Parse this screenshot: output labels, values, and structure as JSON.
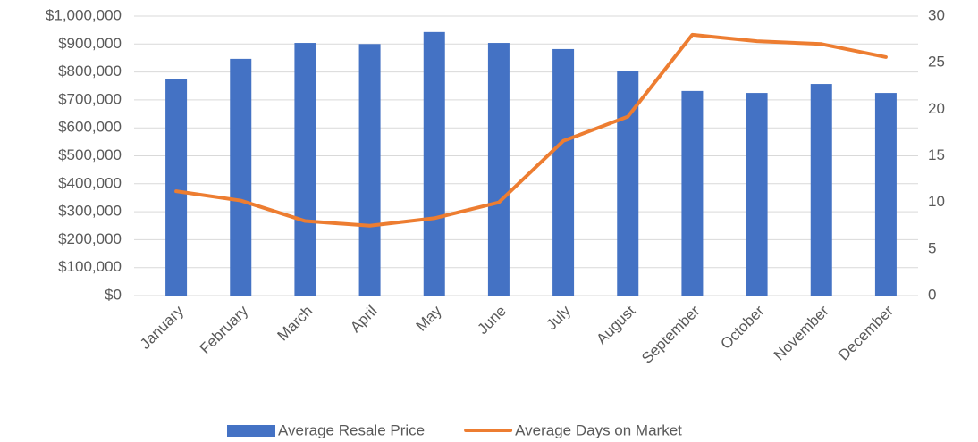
{
  "chart_data": {
    "type": "bar-line",
    "categories": [
      "January",
      "February",
      "March",
      "April",
      "May",
      "June",
      "July",
      "August",
      "September",
      "October",
      "November",
      "December"
    ],
    "series": [
      {
        "name": "Average Resale Price",
        "type": "bar",
        "color": "#4472c4",
        "values": [
          776000,
          847000,
          904000,
          900000,
          943000,
          904000,
          882000,
          802000,
          732000,
          725000,
          757000,
          725000
        ]
      },
      {
        "name": "Average Days on Market",
        "type": "line",
        "axis": "y2",
        "color": "#ed7d31",
        "values": [
          11.2,
          10.2,
          8.0,
          7.5,
          8.3,
          10.0,
          16.6,
          19.2,
          28.0,
          27.3,
          27.0,
          25.6
        ]
      }
    ],
    "ylim": [
      0,
      1000000
    ],
    "yticks": [
      {
        "value": 0,
        "label": "$0"
      },
      {
        "value": 100000,
        "label": "$100,000"
      },
      {
        "value": 200000,
        "label": "$200,000"
      },
      {
        "value": 300000,
        "label": "$300,000"
      },
      {
        "value": 400000,
        "label": "$400,000"
      },
      {
        "value": 500000,
        "label": "$500,000"
      },
      {
        "value": 600000,
        "label": "$600,000"
      },
      {
        "value": 700000,
        "label": "$700,000"
      },
      {
        "value": 800000,
        "label": "$800,000"
      },
      {
        "value": 900000,
        "label": "$900,000"
      },
      {
        "value": 1000000,
        "label": "$1,000,000"
      }
    ],
    "y2lim": [
      0,
      30
    ],
    "y2ticks": [
      0,
      5,
      10,
      15,
      20,
      25,
      30
    ],
    "grid": true,
    "legend": "bottom"
  }
}
